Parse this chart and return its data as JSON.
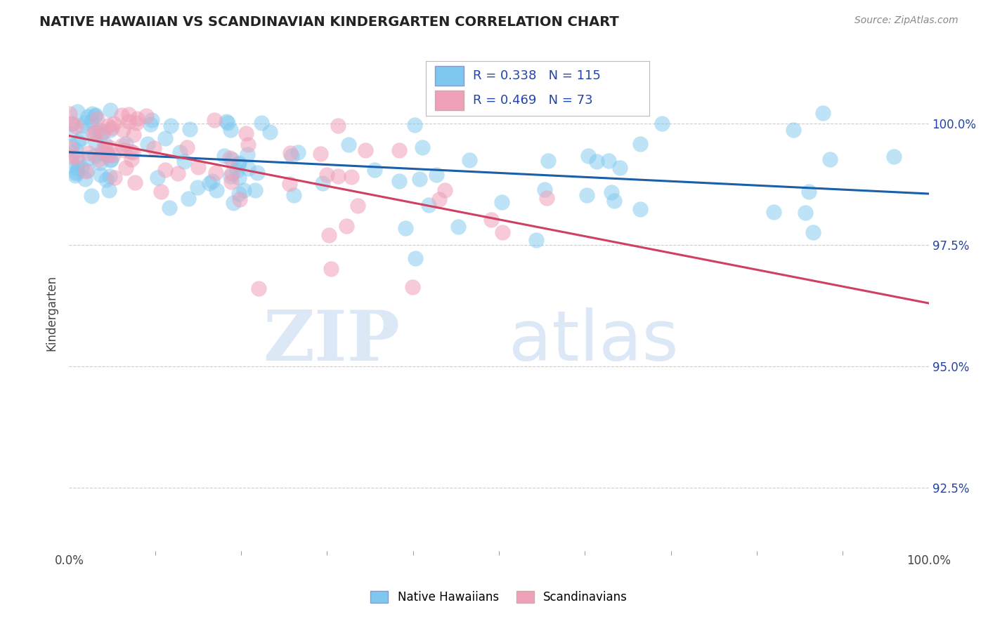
{
  "title": "NATIVE HAWAIIAN VS SCANDINAVIAN KINDERGARTEN CORRELATION CHART",
  "source": "Source: ZipAtlas.com",
  "ylabel": "Kindergarten",
  "yticks": [
    92.5,
    95.0,
    97.5,
    100.0
  ],
  "ytick_labels": [
    "92.5%",
    "95.0%",
    "97.5%",
    "100.0%"
  ],
  "xmin": 0.0,
  "xmax": 100.0,
  "ymin": 91.2,
  "ymax": 101.0,
  "R_hawaiian": 0.338,
  "N_hawaiian": 115,
  "R_scandinavian": 0.469,
  "N_scandinavian": 73,
  "color_hawaiian": "#7EC8F0",
  "color_scandinavian": "#F0A0B8",
  "trend_color_hawaiian": "#1A5FA8",
  "trend_color_scandinavian": "#D04060",
  "watermark_zip": "ZIP",
  "watermark_atlas": "atlas",
  "background_color": "#FFFFFF",
  "grid_color": "#CCCCCC",
  "legend_text_color": "#2244AA",
  "title_color": "#222222",
  "source_color": "#888888"
}
